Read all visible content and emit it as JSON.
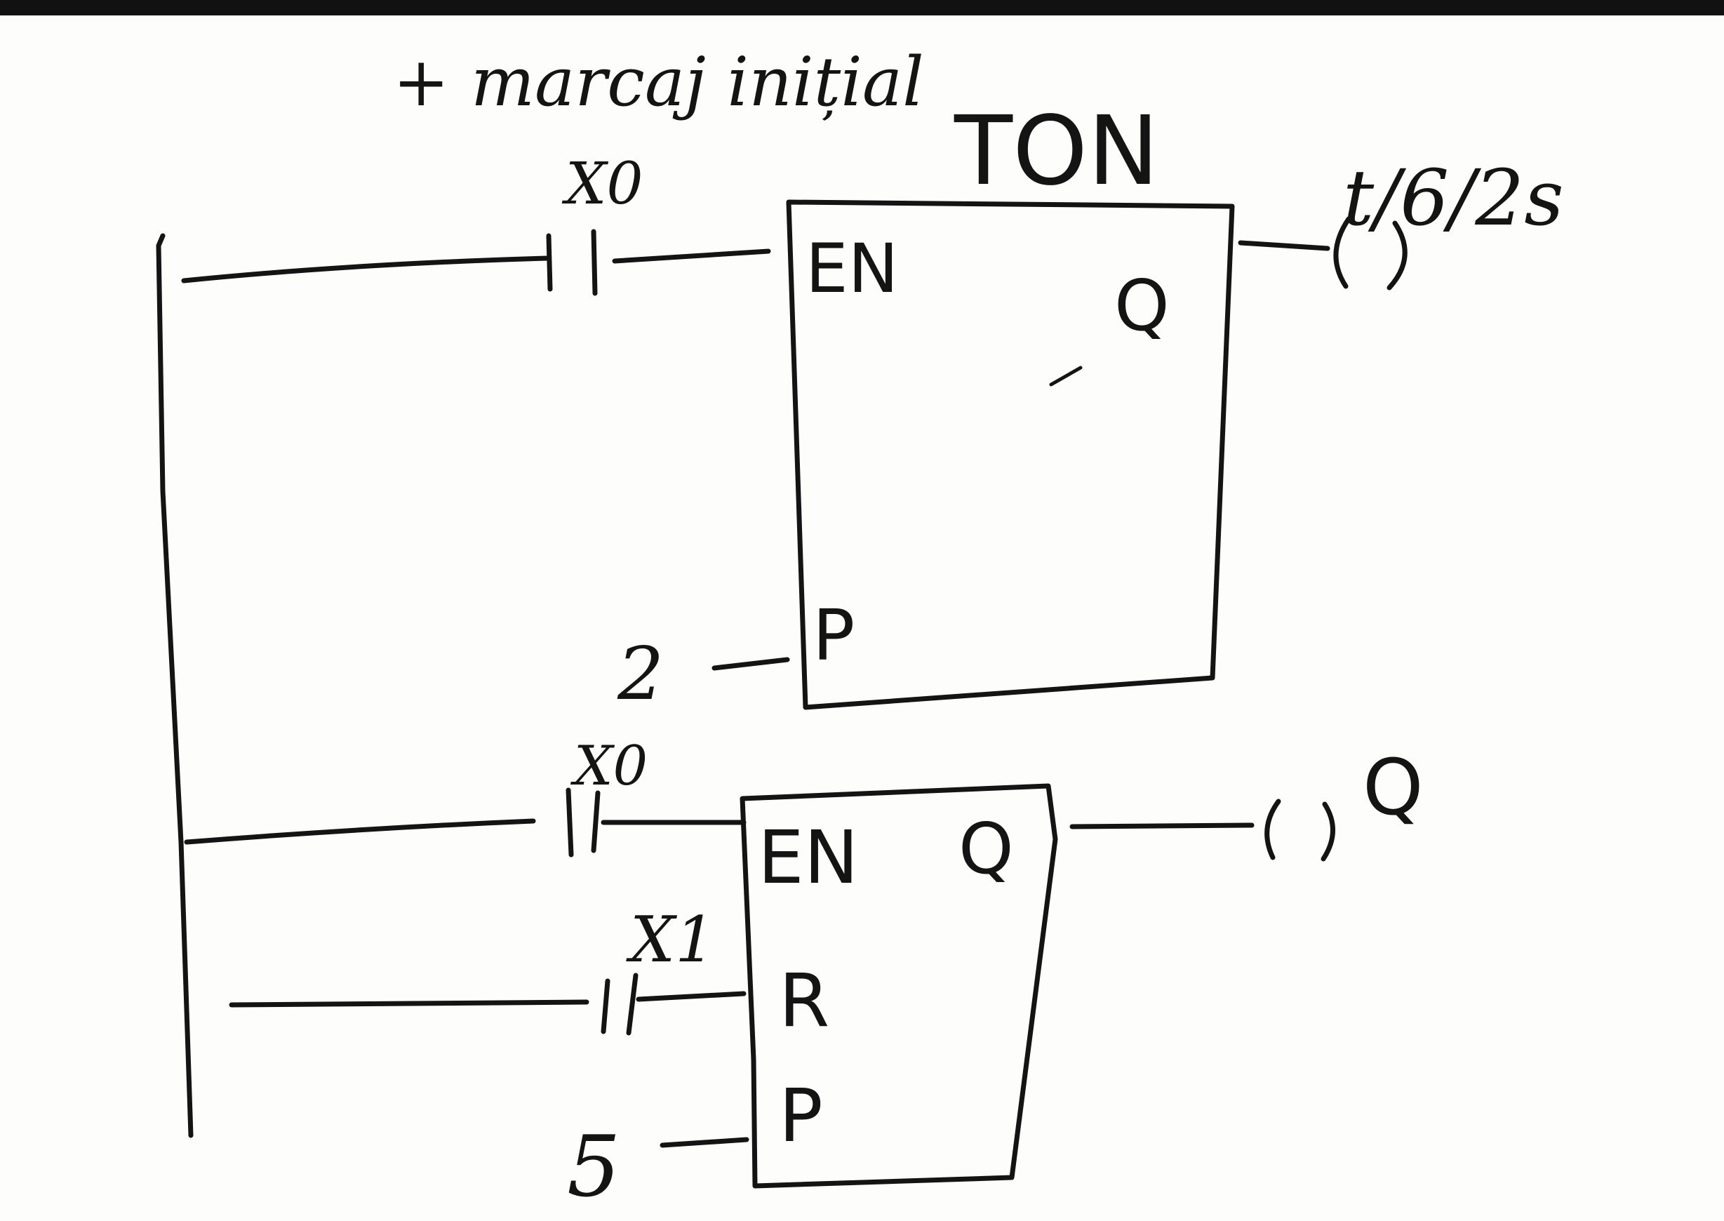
{
  "annotation": {
    "note": "+ marcaj inițial",
    "block_type": "TON",
    "output_note": "t/6/2s"
  },
  "rung1": {
    "contact_label": "X0",
    "block": {
      "input_en": "EN",
      "output_q": "Q",
      "input_p": "P",
      "p_value": "2"
    }
  },
  "rung2": {
    "contact_label": "X0",
    "reset_contact_label": "X1",
    "block": {
      "input_en": "EN",
      "output_q": "Q",
      "input_r": "R",
      "input_p": "P",
      "p_value": "5"
    },
    "coil_label": "Q"
  }
}
